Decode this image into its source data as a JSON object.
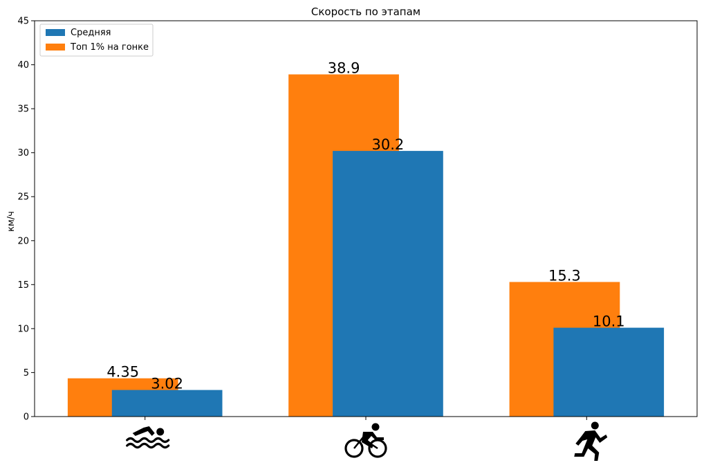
{
  "chart_data": {
    "type": "bar",
    "title": "Скорость по этапам",
    "xlabel": "",
    "ylabel": "км/ч",
    "ylim": [
      0,
      45
    ],
    "yticks": [
      "0",
      "5",
      "10",
      "15",
      "20",
      "25",
      "30",
      "35",
      "40",
      "45"
    ],
    "categories": [
      "swim",
      "bike",
      "run"
    ],
    "category_icons": [
      "swimmer-icon",
      "cyclist-icon",
      "runner-icon"
    ],
    "series": [
      {
        "name": "Топ 1% на гонке",
        "color": "#ff7f0e",
        "values": [
          4.35,
          38.9,
          15.3
        ],
        "labels": [
          "4.35",
          "38.9",
          "15.3"
        ]
      },
      {
        "name": "Средняя",
        "color": "#1f77b4",
        "values": [
          3.02,
          30.2,
          10.1
        ],
        "labels": [
          "3.02",
          "30.2",
          "10.1"
        ]
      }
    ],
    "legend": {
      "placement": "top-left",
      "entries": [
        "Средняя",
        "Топ 1% на гонке"
      ],
      "colors": [
        "#1f77b4",
        "#ff7f0e"
      ]
    },
    "grid": false
  }
}
